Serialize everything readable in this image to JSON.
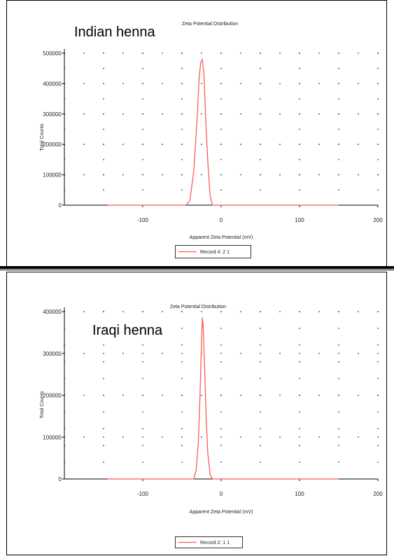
{
  "colors": {
    "series": "#ff5a5a",
    "axis": "#000000",
    "grid": "#444444"
  },
  "chart_data": [
    {
      "type": "line",
      "title": "Zeta Potential Distribution",
      "overlay_label": "Indian henna",
      "xlabel": "Apparent Zeta Potential (mV)",
      "ylabel": "Total Counts",
      "xlim": [
        -200,
        200
      ],
      "ylim": [
        0,
        500000
      ],
      "xticks": [
        -100,
        0,
        100,
        200
      ],
      "yticks": [
        0,
        100000,
        200000,
        300000,
        400000,
        500000
      ],
      "grid": true,
      "legend_position": "bottom-center",
      "series": [
        {
          "name": "Record 4: 2 1",
          "x": [
            -145,
            -45,
            -40,
            -35,
            -31,
            -28,
            -26,
            -24,
            -22,
            -20,
            -17,
            -14,
            -11,
            150
          ],
          "y": [
            0,
            0,
            15000,
            110000,
            270000,
            420000,
            470000,
            480000,
            430000,
            300000,
            140000,
            30000,
            0,
            0
          ]
        }
      ]
    },
    {
      "type": "line",
      "title": "Zeta Potential Distribution",
      "overlay_label": "Iraqi henna",
      "xlabel": "Apparent Zeta Potential (mV)",
      "ylabel": "Total Counts",
      "xlim": [
        -200,
        200
      ],
      "ylim": [
        0,
        400000
      ],
      "xticks": [
        -100,
        0,
        100,
        200
      ],
      "yticks": [
        0,
        100000,
        200000,
        300000,
        400000
      ],
      "grid": true,
      "legend_position": "bottom-center",
      "series": [
        {
          "name": "Record 2: 1 1",
          "x": [
            -145,
            -35,
            -32,
            -29,
            -27,
            -25,
            -24,
            -23,
            -21,
            -19,
            -17,
            -14,
            -11,
            150
          ],
          "y": [
            0,
            0,
            20000,
            90000,
            200000,
            330000,
            385000,
            370000,
            260000,
            140000,
            60000,
            10000,
            0,
            0
          ]
        }
      ]
    }
  ]
}
